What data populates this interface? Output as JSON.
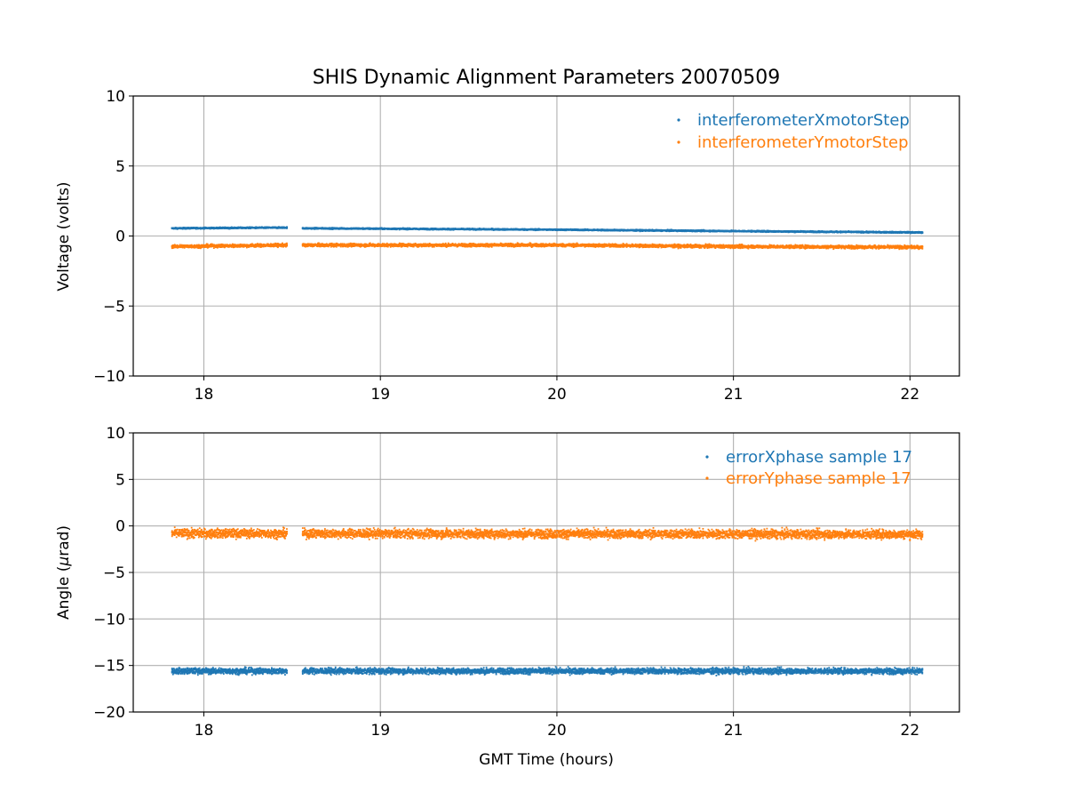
{
  "title": "SHIS Dynamic Alignment Parameters 20070509",
  "colors": {
    "series1": "#1f77b4",
    "series2": "#ff7f0e",
    "grid": "#b0b0b0",
    "frame": "#000000"
  },
  "chart_data": [
    {
      "type": "scatter",
      "xlabel": "",
      "ylabel": "Voltage (volts)",
      "xlim": [
        17.6,
        22.28
      ],
      "ylim": [
        -10,
        10
      ],
      "xticks": [
        "18",
        "19",
        "20",
        "21",
        "22"
      ],
      "yticks": [
        "−10",
        "−5",
        "0",
        "5",
        "10"
      ],
      "grid": true,
      "legend_position": "top-right",
      "segments": [
        [
          17.82,
          18.47
        ],
        [
          18.56,
          22.07
        ]
      ],
      "series": [
        {
          "name": "interferometerXmotorStep",
          "color": "#1f77b4",
          "trend": [
            [
              17.82,
              0.55
            ],
            [
              18.47,
              0.6
            ],
            [
              18.56,
              0.55
            ],
            [
              20.0,
              0.45
            ],
            [
              21.0,
              0.35
            ],
            [
              22.07,
              0.25
            ]
          ],
          "spread": 0.15
        },
        {
          "name": "interferometerYmotorStep",
          "color": "#ff7f0e",
          "trend": [
            [
              17.82,
              -0.75
            ],
            [
              18.47,
              -0.65
            ],
            [
              18.56,
              -0.65
            ],
            [
              20.0,
              -0.65
            ],
            [
              21.0,
              -0.75
            ],
            [
              22.07,
              -0.8
            ]
          ],
          "spread": 0.35
        }
      ]
    },
    {
      "type": "scatter",
      "xlabel": "GMT Time (hours)",
      "ylabel_main": "Angle (",
      "ylabel_symbol": "μ",
      "ylabel_tail": "rad)",
      "xlim": [
        17.6,
        22.28
      ],
      "ylim": [
        -20,
        10
      ],
      "xticks": [
        "18",
        "19",
        "20",
        "21",
        "22"
      ],
      "yticks": [
        "−20",
        "−15",
        "−10",
        "−5",
        "0",
        "5",
        "10"
      ],
      "grid": true,
      "legend_position": "top-right",
      "segments": [
        [
          17.82,
          18.47
        ],
        [
          18.56,
          22.07
        ]
      ],
      "series": [
        {
          "name": "errorXphase sample 17",
          "color": "#1f77b4",
          "trend": [
            [
              17.82,
              -15.6
            ],
            [
              22.07,
              -15.6
            ]
          ],
          "spread": 1.0
        },
        {
          "name": "errorYphase sample 17",
          "color": "#ff7f0e",
          "trend": [
            [
              17.82,
              -0.8
            ],
            [
              22.07,
              -0.9
            ]
          ],
          "spread": 1.5
        }
      ]
    }
  ]
}
